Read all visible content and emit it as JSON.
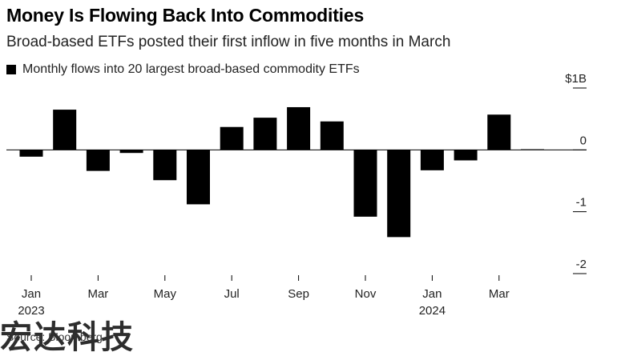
{
  "chart_data": {
    "type": "bar",
    "title": "Money Is Flowing Back Into Commodities",
    "subtitle": "Broad-based ETFs posted their first inflow in five months in March",
    "legend": "Monthly flows into 20 largest broad-based commodity ETFs",
    "categories": [
      "Jan 2023",
      "Feb 2023",
      "Mar 2023",
      "Apr 2023",
      "May 2023",
      "Jun 2023",
      "Jul 2023",
      "Aug 2023",
      "Sep 2023",
      "Oct 2023",
      "Nov 2023",
      "Dec 2023",
      "Jan 2024",
      "Feb 2024",
      "Mar 2024",
      "Apr 2024"
    ],
    "values": [
      -0.11,
      0.65,
      -0.34,
      -0.05,
      -0.49,
      -0.88,
      0.37,
      0.52,
      0.69,
      0.46,
      -1.08,
      -1.41,
      -0.33,
      -0.17,
      0.57,
      0.01
    ],
    "ylim": [
      -2,
      1
    ],
    "yticks": [
      {
        "value": 1,
        "label": "$1B"
      },
      {
        "value": 0,
        "label": "0"
      },
      {
        "value": -1,
        "label": "-1"
      },
      {
        "value": -2,
        "label": "-2"
      }
    ],
    "xticks": [
      {
        "index": 0,
        "month": "Jan",
        "year": "2023"
      },
      {
        "index": 2,
        "month": "Mar",
        "year": ""
      },
      {
        "index": 4,
        "month": "May",
        "year": ""
      },
      {
        "index": 6,
        "month": "Jul",
        "year": ""
      },
      {
        "index": 8,
        "month": "Sep",
        "year": ""
      },
      {
        "index": 10,
        "month": "Nov",
        "year": ""
      },
      {
        "index": 12,
        "month": "Jan",
        "year": "2024"
      },
      {
        "index": 14,
        "month": "Mar",
        "year": ""
      }
    ],
    "bar_color": "#000000",
    "axis_color": "#000000",
    "grid": false
  },
  "source": "Source: Bloomberg",
  "watermark": "宏达科技"
}
